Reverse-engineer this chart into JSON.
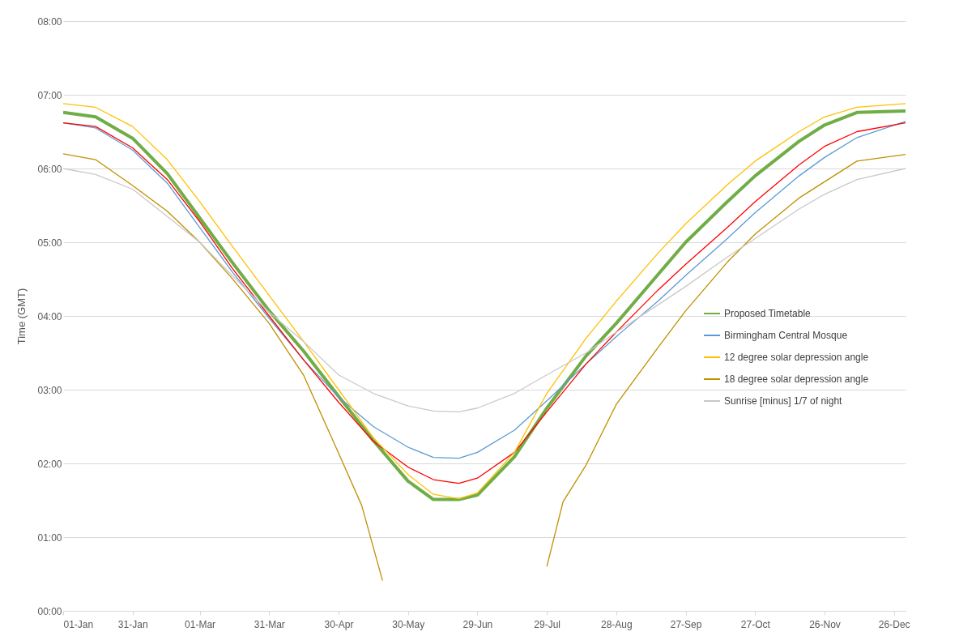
{
  "chart_data": {
    "type": "line",
    "ylabel": "Time (GMT)",
    "x": [
      "--01-01",
      "--01-15",
      "--01-31",
      "--02-15",
      "--03-01",
      "--03-15",
      "--03-31",
      "--04-15",
      "--04-30",
      "--05-15",
      "--05-30",
      "--06-10",
      "--06-21",
      "--06-29",
      "--07-15",
      "--07-29",
      "--08-15",
      "--08-28",
      "--09-15",
      "--09-27",
      "--10-15",
      "--10-27",
      "--11-15",
      "--11-26",
      "--12-10",
      "--12-31"
    ],
    "series": [
      {
        "name": "Proposed Timetable",
        "color": "#70ad47",
        "values": [
          6.76,
          6.7,
          6.41,
          5.93,
          5.33,
          4.73,
          4.07,
          3.52,
          2.91,
          2.31,
          1.76,
          1.51,
          1.51,
          1.57,
          2.09,
          2.75,
          3.46,
          3.9,
          4.56,
          5.0,
          5.55,
          5.9,
          6.37,
          6.59,
          6.76,
          6.78
        ]
      },
      {
        "name": "Birmingham Central Mosque",
        "color": "#5b9bd5",
        "values": [
          6.62,
          6.55,
          6.25,
          5.8,
          5.2,
          4.6,
          3.97,
          3.4,
          2.9,
          2.5,
          2.22,
          2.08,
          2.07,
          2.15,
          2.45,
          2.85,
          3.35,
          3.72,
          4.2,
          4.55,
          5.05,
          5.4,
          5.9,
          6.15,
          6.42,
          6.64
        ]
      },
      {
        "color": "#ff0000",
        "values": [
          6.62,
          6.57,
          6.28,
          5.85,
          5.28,
          4.65,
          4.0,
          3.4,
          2.83,
          2.3,
          1.95,
          1.78,
          1.73,
          1.8,
          2.15,
          2.7,
          3.35,
          3.78,
          4.35,
          4.7,
          5.2,
          5.55,
          6.05,
          6.3,
          6.5,
          6.62
        ]
      },
      {
        "name": "12 degree solar depression angle",
        "color": "#ffc000",
        "values": [
          6.88,
          6.83,
          6.57,
          6.12,
          5.55,
          4.95,
          4.28,
          3.65,
          3.0,
          2.35,
          1.85,
          1.58,
          1.52,
          1.6,
          2.15,
          2.95,
          3.7,
          4.2,
          4.85,
          5.25,
          5.78,
          6.1,
          6.5,
          6.7,
          6.83,
          6.88
        ]
      },
      {
        "name": "18 degree solar depression angle",
        "color": "#bf9000",
        "x": [
          "--01-01",
          "--01-15",
          "--01-31",
          "--02-15",
          "--03-01",
          "--03-15",
          "--03-31",
          "--04-15",
          "--04-30",
          "--05-10",
          "--05-19",
          "--06-21",
          "--07-29",
          "--08-05",
          "--08-15",
          "--08-28",
          "--09-15",
          "--09-27",
          "--10-15",
          "--10-27",
          "--11-15",
          "--11-26",
          "--12-10",
          "--12-31"
        ],
        "values": [
          6.2,
          6.12,
          5.77,
          5.42,
          5.0,
          4.51,
          3.9,
          3.19,
          2.14,
          1.43,
          0.41,
          null,
          0.6,
          1.48,
          1.98,
          2.8,
          3.57,
          4.07,
          4.73,
          5.11,
          5.6,
          5.82,
          6.1,
          6.19
        ]
      },
      {
        "name": "Sunrise [minus] 1/7 of night",
        "color": "#c9c9c9",
        "values": [
          6.0,
          5.92,
          5.72,
          5.35,
          5.0,
          4.55,
          4.05,
          3.65,
          3.2,
          2.95,
          2.78,
          2.71,
          2.7,
          2.75,
          2.95,
          3.2,
          3.5,
          3.78,
          4.15,
          4.4,
          4.8,
          5.05,
          5.45,
          5.65,
          5.85,
          6.0
        ]
      }
    ],
    "xlim": [
      "--01-01",
      "--12-31"
    ],
    "xticks": [
      {
        "value": "--01-01",
        "label": "01-Jan"
      },
      {
        "value": "--01-31",
        "label": "31-Jan"
      },
      {
        "value": "--03-01",
        "label": "01-Mar"
      },
      {
        "value": "--03-31",
        "label": "31-Mar"
      },
      {
        "value": "--04-30",
        "label": "30-Apr"
      },
      {
        "value": "--05-30",
        "label": "30-May"
      },
      {
        "value": "--06-29",
        "label": "29-Jun"
      },
      {
        "value": "--07-29",
        "label": "29-Jul"
      },
      {
        "value": "--08-28",
        "label": "28-Aug"
      },
      {
        "value": "--09-27",
        "label": "27-Sep"
      },
      {
        "value": "--10-27",
        "label": "27-Oct"
      },
      {
        "value": "--11-26",
        "label": "26-Nov"
      },
      {
        "value": "--12-26",
        "label": "26-Dec"
      }
    ],
    "ylim": [
      0,
      8
    ],
    "yticks": [
      {
        "value": 0,
        "label": "00:00"
      },
      {
        "value": 1,
        "label": "01:00"
      },
      {
        "value": 2,
        "label": "02:00"
      },
      {
        "value": 3,
        "label": "03:00"
      },
      {
        "value": 4,
        "label": "04:00"
      },
      {
        "value": 5,
        "label": "05:00"
      },
      {
        "value": 6,
        "label": "06:00"
      },
      {
        "value": 7,
        "label": "07:00"
      },
      {
        "value": 8,
        "label": "08:00"
      }
    ],
    "grid": "y",
    "legend": "right",
    "marker": "none",
    "line_style": "solid"
  }
}
